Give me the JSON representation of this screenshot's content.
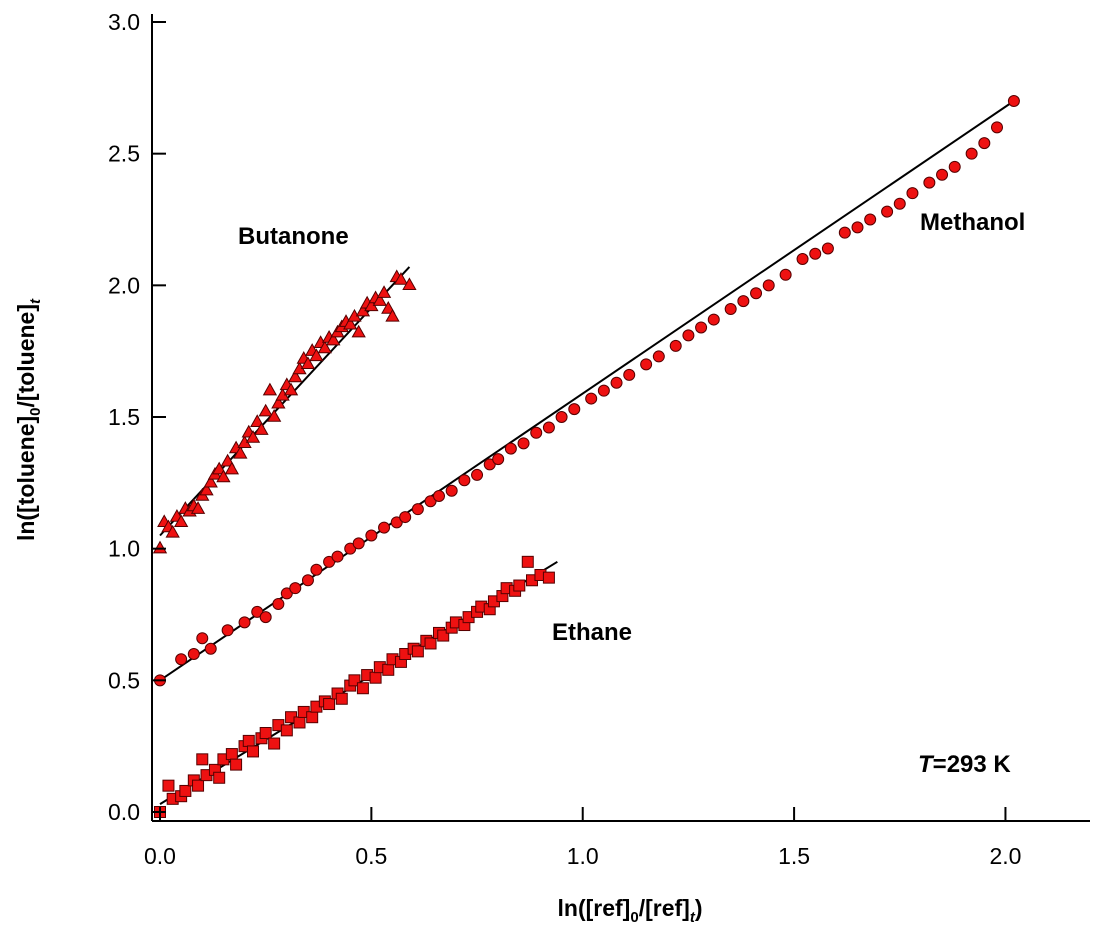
{
  "chart_data": {
    "type": "scatter",
    "title": "",
    "xlabel": {
      "main": "ln([ref]",
      "sub0": "0",
      "mid": "/[ref]",
      "sub1": "t",
      "end": ")"
    },
    "ylabel": {
      "main": "ln([toluene]",
      "sub0": "0",
      "mid": "/[toluene]",
      "sub1": "t",
      "end": ""
    },
    "xlim": [
      0.0,
      2.2
    ],
    "ylim": [
      0.0,
      3.0
    ],
    "x_ticks": [
      0.0,
      0.5,
      1.0,
      1.5,
      2.0
    ],
    "x_tick_labels": [
      "0.0",
      "0.5",
      "1.0",
      "1.5",
      "2.0"
    ],
    "y_ticks": [
      0.0,
      0.5,
      1.0,
      1.5,
      2.0,
      2.5,
      3.0
    ],
    "y_tick_labels": [
      "0.0",
      "0.5",
      "1.0",
      "1.5",
      "2.0",
      "2.5",
      "3.0"
    ],
    "grid": false,
    "annotation": {
      "italic": "T",
      "rest": "=293 K"
    },
    "colors": {
      "marker_fill": "#ee1111",
      "marker_edge": "#550000",
      "fit_line": "#000000"
    },
    "series": [
      {
        "name": "Butanone",
        "marker": "triangle",
        "fit": {
          "x0": 0.0,
          "y0": 1.05,
          "x1": 0.59,
          "y1": 2.07
        },
        "x": [
          0.0,
          0.01,
          0.02,
          0.03,
          0.04,
          0.05,
          0.06,
          0.07,
          0.08,
          0.09,
          0.1,
          0.11,
          0.12,
          0.13,
          0.14,
          0.15,
          0.16,
          0.17,
          0.18,
          0.19,
          0.2,
          0.21,
          0.22,
          0.23,
          0.24,
          0.25,
          0.26,
          0.27,
          0.28,
          0.29,
          0.3,
          0.31,
          0.32,
          0.33,
          0.34,
          0.35,
          0.36,
          0.37,
          0.38,
          0.39,
          0.4,
          0.41,
          0.42,
          0.43,
          0.44,
          0.45,
          0.46,
          0.47,
          0.48,
          0.49,
          0.5,
          0.51,
          0.52,
          0.53,
          0.54,
          0.55,
          0.56,
          0.57,
          0.59
        ],
        "y": [
          1.0,
          1.1,
          1.08,
          1.06,
          1.12,
          1.1,
          1.15,
          1.14,
          1.16,
          1.15,
          1.2,
          1.22,
          1.25,
          1.28,
          1.3,
          1.27,
          1.33,
          1.3,
          1.38,
          1.36,
          1.4,
          1.44,
          1.42,
          1.48,
          1.45,
          1.52,
          1.6,
          1.5,
          1.55,
          1.58,
          1.62,
          1.6,
          1.65,
          1.68,
          1.72,
          1.7,
          1.75,
          1.73,
          1.78,
          1.76,
          1.8,
          1.79,
          1.82,
          1.84,
          1.86,
          1.85,
          1.88,
          1.82,
          1.9,
          1.93,
          1.92,
          1.95,
          1.94,
          1.97,
          1.91,
          1.88,
          2.03,
          2.02,
          2.0
        ]
      },
      {
        "name": "Methanol",
        "marker": "circle",
        "fit": {
          "x0": 0.0,
          "y0": 0.5,
          "x1": 2.02,
          "y1": 2.7
        },
        "x": [
          0.0,
          0.05,
          0.08,
          0.1,
          0.12,
          0.16,
          0.2,
          0.23,
          0.25,
          0.28,
          0.3,
          0.32,
          0.35,
          0.37,
          0.4,
          0.42,
          0.45,
          0.47,
          0.5,
          0.53,
          0.56,
          0.58,
          0.61,
          0.64,
          0.66,
          0.69,
          0.72,
          0.75,
          0.78,
          0.8,
          0.83,
          0.86,
          0.89,
          0.92,
          0.95,
          0.98,
          1.02,
          1.05,
          1.08,
          1.11,
          1.15,
          1.18,
          1.22,
          1.25,
          1.28,
          1.31,
          1.35,
          1.38,
          1.41,
          1.44,
          1.48,
          1.52,
          1.55,
          1.58,
          1.62,
          1.65,
          1.68,
          1.72,
          1.75,
          1.78,
          1.82,
          1.85,
          1.88,
          1.92,
          1.95,
          1.98,
          2.02
        ],
        "y": [
          0.5,
          0.58,
          0.6,
          0.66,
          0.62,
          0.69,
          0.72,
          0.76,
          0.74,
          0.79,
          0.83,
          0.85,
          0.88,
          0.92,
          0.95,
          0.97,
          1.0,
          1.02,
          1.05,
          1.08,
          1.1,
          1.12,
          1.15,
          1.18,
          1.2,
          1.22,
          1.26,
          1.28,
          1.32,
          1.34,
          1.38,
          1.4,
          1.44,
          1.46,
          1.5,
          1.53,
          1.57,
          1.6,
          1.63,
          1.66,
          1.7,
          1.73,
          1.77,
          1.81,
          1.84,
          1.87,
          1.91,
          1.94,
          1.97,
          2.0,
          2.04,
          2.1,
          2.12,
          2.14,
          2.2,
          2.22,
          2.25,
          2.28,
          2.31,
          2.35,
          2.39,
          2.42,
          2.45,
          2.5,
          2.54,
          2.6,
          2.7
        ]
      },
      {
        "name": "Ethane",
        "marker": "square",
        "fit": {
          "x0": 0.0,
          "y0": 0.03,
          "x1": 0.94,
          "y1": 0.95
        },
        "x": [
          0.0,
          0.02,
          0.03,
          0.05,
          0.06,
          0.08,
          0.09,
          0.1,
          0.11,
          0.13,
          0.14,
          0.15,
          0.17,
          0.18,
          0.2,
          0.21,
          0.22,
          0.24,
          0.25,
          0.27,
          0.28,
          0.3,
          0.31,
          0.33,
          0.34,
          0.36,
          0.37,
          0.39,
          0.4,
          0.42,
          0.43,
          0.45,
          0.46,
          0.48,
          0.49,
          0.51,
          0.52,
          0.54,
          0.55,
          0.57,
          0.58,
          0.6,
          0.61,
          0.63,
          0.64,
          0.66,
          0.67,
          0.69,
          0.7,
          0.72,
          0.73,
          0.75,
          0.76,
          0.78,
          0.79,
          0.81,
          0.82,
          0.84,
          0.85,
          0.87,
          0.88,
          0.9,
          0.92
        ],
        "y": [
          0.0,
          0.1,
          0.05,
          0.06,
          0.08,
          0.12,
          0.1,
          0.2,
          0.14,
          0.16,
          0.13,
          0.2,
          0.22,
          0.18,
          0.25,
          0.27,
          0.23,
          0.28,
          0.3,
          0.26,
          0.33,
          0.31,
          0.36,
          0.34,
          0.38,
          0.36,
          0.4,
          0.42,
          0.41,
          0.45,
          0.43,
          0.48,
          0.5,
          0.47,
          0.52,
          0.51,
          0.55,
          0.54,
          0.58,
          0.57,
          0.6,
          0.62,
          0.61,
          0.65,
          0.64,
          0.68,
          0.67,
          0.7,
          0.72,
          0.71,
          0.74,
          0.76,
          0.78,
          0.77,
          0.8,
          0.82,
          0.85,
          0.84,
          0.86,
          0.95,
          0.88,
          0.9,
          0.89
        ]
      }
    ]
  }
}
